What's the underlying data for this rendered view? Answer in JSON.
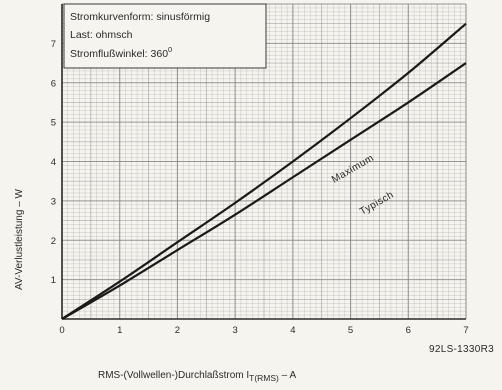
{
  "chart_data": {
    "type": "line",
    "title": "",
    "info_box": {
      "line1": "Stromkurvenform: sinusförmig",
      "line2": "Last: ohmsch",
      "line3_prefix": "Stromflußwinkel: 360",
      "line3_superscript": "0"
    },
    "xlabel": {
      "prefix": "RMS-(Vollwellen-)Durchlaßstrom I",
      "subscript": "T(RMS)",
      "suffix": " – A"
    },
    "ylabel": "AV-Verlustleistung – W",
    "xlim": [
      0,
      7
    ],
    "ylim": [
      0,
      8
    ],
    "x_ticks": [
      "0",
      "1",
      "2",
      "3",
      "4",
      "5",
      "6",
      "7"
    ],
    "y_ticks": [
      "1",
      "2",
      "3",
      "4",
      "5",
      "6",
      "7"
    ],
    "grid": true,
    "series": [
      {
        "name": "Maximum",
        "x": [
          0,
          1,
          2,
          3,
          4,
          5,
          6,
          7
        ],
        "y": [
          0,
          0.95,
          1.95,
          2.95,
          4.0,
          5.1,
          6.25,
          7.5
        ],
        "color": "#1a1a1a"
      },
      {
        "name": "Typisch",
        "x": [
          0,
          1,
          2,
          3,
          4,
          5,
          6,
          7
        ],
        "y": [
          0,
          0.85,
          1.75,
          2.65,
          3.6,
          4.55,
          5.5,
          6.5
        ],
        "color": "#1a1a1a"
      }
    ],
    "reference_code": "92LS-1330R3",
    "colors": {
      "grid": "#8f8f8f",
      "axis": "#2a2a2a",
      "background": "#f6f4ee"
    }
  }
}
